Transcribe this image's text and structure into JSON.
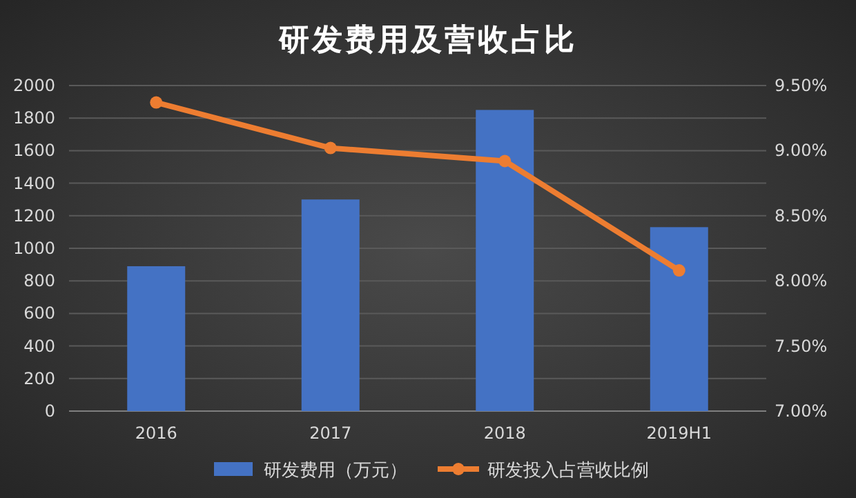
{
  "chart_data": {
    "type": "bar",
    "title": "研发费用及营收占比",
    "categories": [
      "2016",
      "2017",
      "2018",
      "2019H1"
    ],
    "series": [
      {
        "name": "研发费用（万元）",
        "color": "#4472c4",
        "values": [
          890,
          1300,
          1850,
          1130
        ]
      },
      {
        "name": "研发投入占营收比例",
        "type": "line",
        "axis": "y2",
        "color": "#ed7d31",
        "values": [
          9.37,
          9.02,
          8.92,
          8.08
        ]
      }
    ],
    "ylim": [
      0,
      2000
    ],
    "yticks": [
      0,
      200,
      400,
      600,
      800,
      1000,
      1200,
      1400,
      1600,
      1800,
      2000
    ],
    "y2lim": [
      7,
      9.5
    ],
    "y2ticks": [
      {
        "value": 7,
        "label": "7.00%"
      },
      {
        "value": 7.5,
        "label": "7.50%"
      },
      {
        "value": 8,
        "label": "8.00%"
      },
      {
        "value": 8.5,
        "label": "8.50%"
      },
      {
        "value": 9,
        "label": "9.00%"
      },
      {
        "value": 9.5,
        "label": "9.50%"
      }
    ],
    "grid": "y",
    "legend": "bottom",
    "marker": "circle"
  }
}
